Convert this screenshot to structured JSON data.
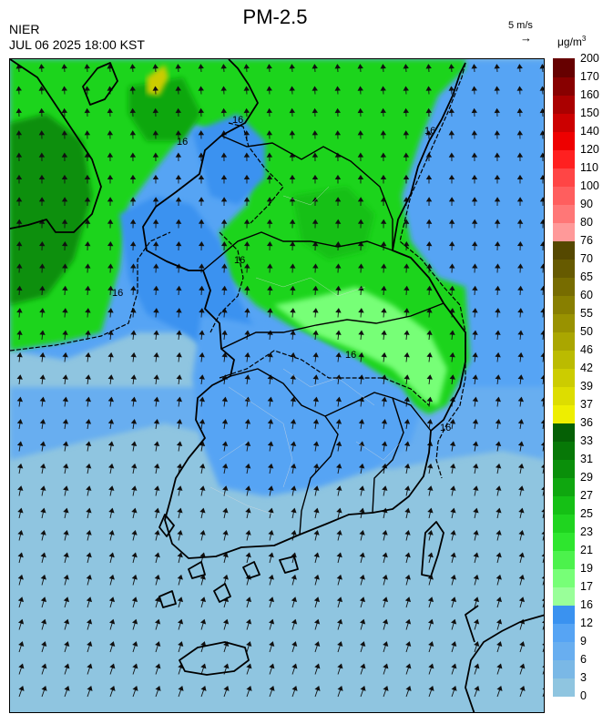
{
  "header": {
    "title": "PM-2.5",
    "agency": "NIER",
    "datetime": "JUL 06 2025 18:00 KST",
    "wind_ref_label": "5 m/s",
    "wind_ref_arrow": "→",
    "unit_base": "μg/m",
    "unit_exp": "3"
  },
  "map": {
    "contour_labels": [
      "16",
      "16",
      "16",
      "16",
      "16",
      "16",
      "16"
    ]
  },
  "colorbar": {
    "labels": [
      "0",
      "3",
      "6",
      "9",
      "12",
      "16",
      "17",
      "19",
      "21",
      "23",
      "25",
      "27",
      "29",
      "31",
      "33",
      "36",
      "37",
      "39",
      "42",
      "46",
      "50",
      "55",
      "60",
      "65",
      "70",
      "76",
      "80",
      "90",
      "100",
      "110",
      "120",
      "140",
      "150",
      "160",
      "170",
      "200"
    ],
    "colors": [
      "#8fc5e0",
      "#7ab8e6",
      "#68aef0",
      "#56a4f4",
      "#3a92f0",
      "#99ff99",
      "#77ff77",
      "#4cf24c",
      "#2ee62e",
      "#1fd41f",
      "#15c015",
      "#0fa70f",
      "#0a8f0a",
      "#077807",
      "#056005",
      "#eeee00",
      "#dddd00",
      "#cccc00",
      "#bbbb00",
      "#aaa600",
      "#999200",
      "#887f00",
      "#776c00",
      "#665a00",
      "#554800",
      "#ff9999",
      "#ff7777",
      "#ff5e5e",
      "#ff4545",
      "#ff2020",
      "#ee0000",
      "#cc0000",
      "#aa0000",
      "#880000",
      "#660000"
    ]
  }
}
